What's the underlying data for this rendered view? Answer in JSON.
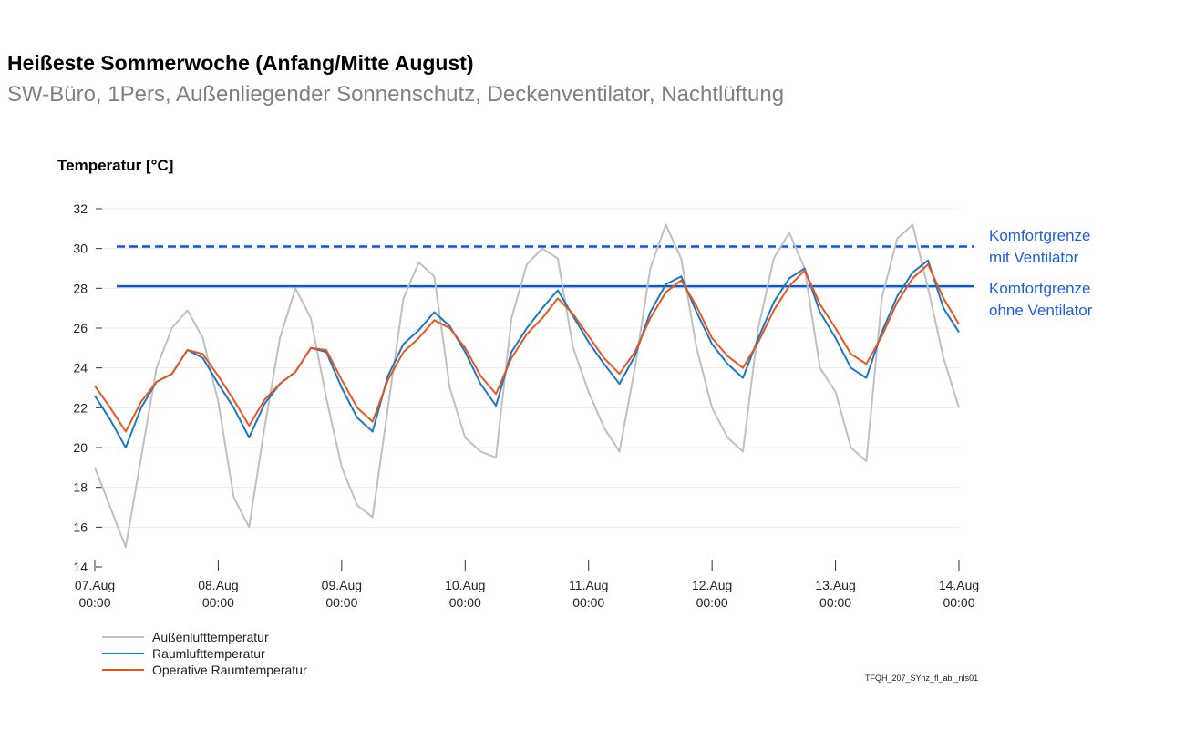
{
  "header": {
    "title": "Heißeste Sommerwoche (Anfang/Mitte August)",
    "subtitle": "SW-Büro, 1Pers, Außenliegender Sonnenschutz, Deckenventilator, Nachtlüftung"
  },
  "credit": "TFQH_207_SYhz_fl_abl_nls01",
  "chart_data": {
    "type": "line",
    "ylabel": "Temperatur [°C]",
    "ylim": [
      14,
      32
    ],
    "yticks": [
      14,
      16,
      18,
      20,
      22,
      24,
      26,
      28,
      30,
      32
    ],
    "xticks": [
      {
        "day": "07.Aug",
        "time": "00:00"
      },
      {
        "day": "08.Aug",
        "time": "00:00"
      },
      {
        "day": "09.Aug",
        "time": "00:00"
      },
      {
        "day": "10.Aug",
        "time": "00:00"
      },
      {
        "day": "11.Aug",
        "time": "00:00"
      },
      {
        "day": "12.Aug",
        "time": "00:00"
      },
      {
        "day": "13.Aug",
        "time": "00:00"
      },
      {
        "day": "14.Aug",
        "time": "00:00"
      }
    ],
    "x_start": "07.Aug 00:00",
    "x_end": "14.Aug 00:00",
    "x_step": "3h",
    "grid": "horizontal",
    "legend_position": "bottom-left",
    "series": [
      {
        "name": "Außenlufttemperatur",
        "color": "#c0c0c0",
        "values": [
          19.0,
          17.0,
          15.0,
          19.5,
          24.0,
          26.0,
          26.9,
          25.5,
          22.3,
          17.5,
          16.0,
          21.0,
          25.5,
          28.0,
          26.5,
          22.5,
          19.0,
          17.1,
          16.5,
          22.0,
          27.5,
          29.3,
          28.6,
          23.0,
          20.5,
          19.8,
          19.5,
          26.5,
          29.2,
          30.0,
          29.5,
          25.0,
          22.8,
          21.0,
          19.8,
          24.0,
          29.0,
          31.2,
          29.5,
          25.0,
          22.0,
          20.5,
          19.8,
          26.0,
          29.5,
          30.8,
          29.0,
          24.0,
          22.8,
          20.0,
          19.3,
          27.5,
          30.5,
          31.2,
          28.0,
          24.5,
          22.0
        ]
      },
      {
        "name": "Raumlufttemperatur",
        "color": "#1a78c8",
        "values": [
          22.6,
          21.4,
          20.0,
          22.0,
          23.3,
          23.7,
          24.9,
          24.5,
          23.2,
          22.0,
          20.5,
          22.2,
          23.2,
          23.8,
          25.0,
          24.8,
          23.0,
          21.5,
          20.8,
          23.6,
          25.2,
          25.9,
          26.8,
          26.1,
          24.8,
          23.2,
          22.1,
          24.8,
          26.0,
          27.0,
          27.9,
          26.6,
          25.3,
          24.2,
          23.2,
          24.6,
          26.8,
          28.2,
          28.6,
          26.8,
          25.2,
          24.2,
          23.5,
          25.5,
          27.3,
          28.5,
          29.0,
          26.8,
          25.5,
          24.0,
          23.5,
          25.8,
          27.6,
          28.8,
          29.4,
          27.0,
          25.8
        ]
      },
      {
        "name": "Operative Raumtemperatur",
        "color": "#e8561e",
        "values": [
          23.1,
          22.0,
          20.8,
          22.3,
          23.3,
          23.7,
          24.9,
          24.7,
          23.6,
          22.4,
          21.1,
          22.4,
          23.2,
          23.8,
          25.0,
          24.9,
          23.4,
          22.0,
          21.3,
          23.4,
          24.8,
          25.5,
          26.4,
          26.0,
          25.0,
          23.6,
          22.7,
          24.5,
          25.7,
          26.5,
          27.5,
          26.7,
          25.6,
          24.5,
          23.7,
          24.8,
          26.5,
          27.8,
          28.4,
          27.1,
          25.5,
          24.6,
          24.0,
          25.3,
          26.9,
          28.1,
          28.9,
          27.2,
          26.0,
          24.7,
          24.2,
          25.6,
          27.3,
          28.5,
          29.2,
          27.5,
          26.2
        ]
      }
    ],
    "thresholds": [
      {
        "value": 30.1,
        "style": "dashed",
        "color": "#0a55e0",
        "label_line1": "Komfortgrenze",
        "label_line2": "mit Ventilator"
      },
      {
        "value": 28.1,
        "style": "solid",
        "color": "#0a55e0",
        "label_line1": "Komfortgrenze",
        "label_line2": "ohne Ventilator"
      }
    ]
  }
}
